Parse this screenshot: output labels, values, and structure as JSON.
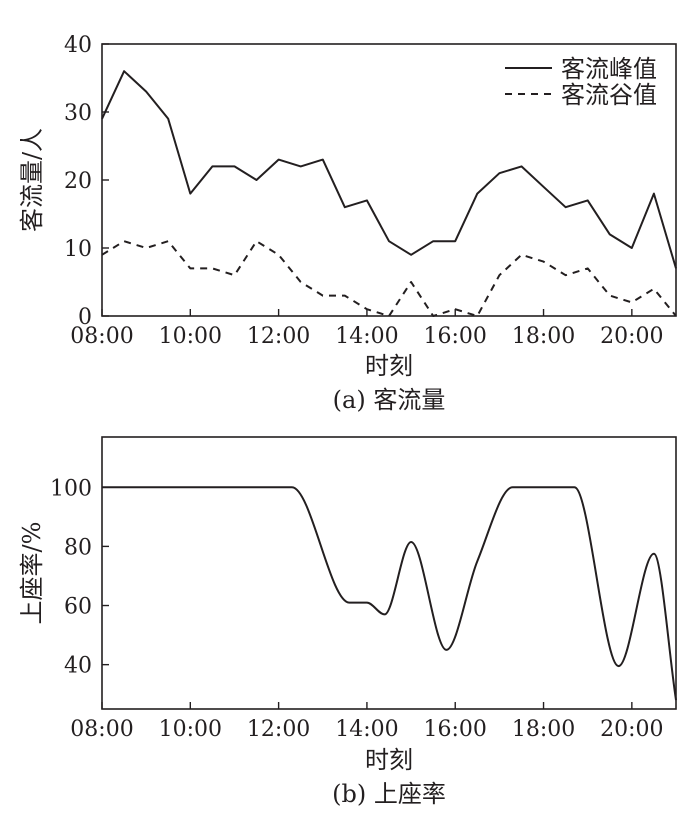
{
  "charts": {
    "a": {
      "caption": "(a) 客流量",
      "ylabel": "客流量/人",
      "xlabel": "时刻",
      "chart_data": {
        "type": "line",
        "xlim": [
          8,
          21
        ],
        "ylim": [
          0,
          40
        ],
        "x_ticks": [
          8,
          10,
          12,
          14,
          16,
          18,
          20
        ],
        "x_tick_labels": [
          "08:00",
          "10:00",
          "12:00",
          "14:00",
          "16:00",
          "18:00",
          "20:00"
        ],
        "y_ticks": [
          0,
          10,
          20,
          30,
          40
        ],
        "y_tick_labels": [
          "0",
          "10",
          "20",
          "30",
          "40"
        ],
        "legend_position": "top-right",
        "x": [
          8.0,
          8.5,
          9.0,
          9.5,
          10.0,
          10.5,
          11.0,
          11.5,
          12.0,
          12.5,
          13.0,
          13.5,
          14.0,
          14.5,
          15.0,
          15.5,
          16.0,
          16.5,
          17.0,
          17.5,
          18.0,
          18.5,
          19.0,
          19.5,
          20.0,
          20.5,
          21.0
        ],
        "series": [
          {
            "name": "客流峰值",
            "style": "solid",
            "values": [
              29,
              36,
              33,
              29,
              18,
              22,
              22,
              20,
              23,
              22,
              23,
              16,
              17,
              11,
              9,
              11,
              11,
              18,
              21,
              22,
              19,
              16,
              17,
              12,
              10,
              18,
              7
            ]
          },
          {
            "name": "客流谷值",
            "style": "dashed",
            "values": [
              9,
              11,
              10,
              11,
              7,
              7,
              6,
              11,
              9,
              5,
              3,
              3,
              1,
              0,
              5,
              0,
              1,
              0,
              6,
              9,
              8,
              6,
              7,
              3,
              2,
              4,
              0
            ]
          }
        ]
      }
    },
    "b": {
      "caption": "(b) 上座率",
      "ylabel": "上座率/%",
      "xlabel": "时刻",
      "chart_data": {
        "type": "line",
        "xlim": [
          8,
          21
        ],
        "ylim": [
          25,
          117
        ],
        "x_ticks": [
          8,
          10,
          12,
          14,
          16,
          18,
          20
        ],
        "x_tick_labels": [
          "08:00",
          "10:00",
          "12:00",
          "14:00",
          "16:00",
          "18:00",
          "20:00"
        ],
        "y_ticks": [
          40,
          60,
          80,
          100
        ],
        "y_tick_labels": [
          "40",
          "60",
          "80",
          "100"
        ],
        "series": [
          {
            "style": "solid",
            "x": [
              8.0,
              12.3,
              13.6,
              14.0,
              14.4,
              15.0,
              15.8,
              16.5,
              17.3,
              18.7,
              19.7,
              20.5,
              21.0
            ],
            "values": [
              100,
              100,
              61,
              61,
              57,
              81.5,
              45,
              75,
              100,
              100,
              39.5,
              77.5,
              28
            ]
          }
        ]
      }
    }
  }
}
